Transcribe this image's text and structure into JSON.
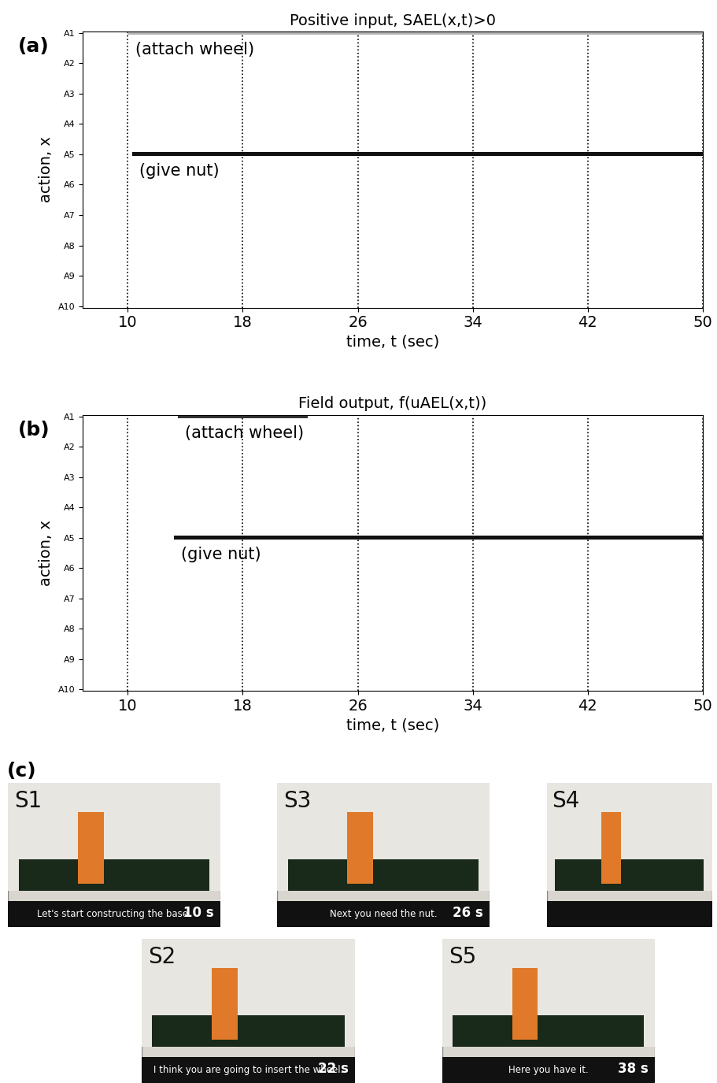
{
  "chart_data": [
    {
      "type": "timeline",
      "panel": "(a)",
      "title": "Positive input, SAEL(x,t)>0",
      "x_label": "time, t (sec)",
      "y_label": "action, x",
      "categories": [
        "A1",
        "A2",
        "A3",
        "A4",
        "A5",
        "A6",
        "A7",
        "A8",
        "A9",
        "A10"
      ],
      "xlim": [
        6.85,
        50
      ],
      "xticks": [
        10,
        18,
        26,
        34,
        42,
        50
      ],
      "grid": true,
      "series": [
        {
          "name": "(attach wheel)",
          "action": "A1",
          "start": 10,
          "end": 50,
          "color": "#b5b5b5"
        },
        {
          "name": "(give nut)",
          "action": "A5",
          "start": 10.3,
          "end": 50,
          "color": "#111111"
        }
      ]
    },
    {
      "type": "timeline",
      "panel": "(b)",
      "title": "Field output, f(uAEL(x,t))",
      "x_label": "time, t (sec)",
      "y_label": "action, x",
      "categories": [
        "A1",
        "A2",
        "A3",
        "A4",
        "A5",
        "A6",
        "A7",
        "A8",
        "A9",
        "A10"
      ],
      "xlim": [
        6.85,
        50
      ],
      "xticks": [
        10,
        18,
        26,
        34,
        42,
        50
      ],
      "grid": true,
      "series": [
        {
          "name": "(attach wheel)",
          "action": "A1",
          "start": 13.5,
          "end": 22.5,
          "color": "#333333"
        },
        {
          "name": "(give nut)",
          "action": "A5",
          "start": 13.2,
          "end": 50,
          "color": "#111111"
        }
      ]
    }
  ],
  "panel_c": {
    "panel": "(c)",
    "snapshots": [
      {
        "label": "S1",
        "caption": "Let's start constructing the base.",
        "time": "10 s"
      },
      {
        "label": "S2",
        "caption": "I think you are going to insert the wheel.",
        "time": "22 s"
      },
      {
        "label": "S3",
        "caption": "Next you need the nut.",
        "time": "26 s"
      },
      {
        "label": "S4",
        "caption": "",
        "time": ""
      },
      {
        "label": "S5",
        "caption": "Here you have it.",
        "time": "38 s"
      }
    ]
  }
}
